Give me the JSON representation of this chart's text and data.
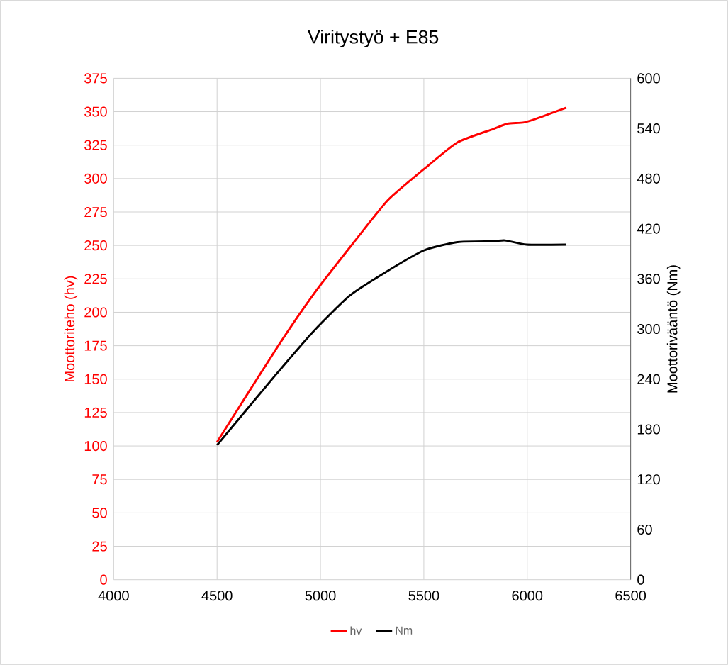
{
  "chart_data": {
    "type": "line",
    "title": "Viritystyö + E85",
    "ylabel": "Moottoriteho (hv)",
    "y2label": "Moottorivääntö (Nm)",
    "xlim": [
      4000,
      6500
    ],
    "xticks": [
      4000,
      4500,
      5000,
      5500,
      6000,
      6500
    ],
    "ylim": [
      0,
      375
    ],
    "yticks": [
      0,
      25,
      50,
      75,
      100,
      125,
      150,
      175,
      200,
      225,
      250,
      275,
      300,
      325,
      350,
      375
    ],
    "y2lim": [
      0,
      600
    ],
    "y2ticks": [
      0,
      60,
      120,
      180,
      240,
      300,
      360,
      420,
      480,
      540,
      600
    ],
    "grid": true,
    "legend": "bottom",
    "line_style": "solid",
    "series": [
      {
        "name": "hv",
        "color": "#ff0000",
        "x": [
          4500,
          4796,
          4969,
          5165,
          5327,
          5500,
          5662,
          5835,
          5904,
          5985,
          6066,
          6189
        ],
        "values": [
          103,
          175,
          214,
          253,
          284,
          307,
          327,
          337,
          341,
          342,
          346,
          353
        ]
      },
      {
        "name": "Nm",
        "color": "#000000",
        "axis": "y2",
        "x": [
          4500,
          4773,
          4969,
          5142,
          5315,
          5500,
          5662,
          5835,
          5893,
          5997,
          6189
        ],
        "values": [
          161,
          242,
          298,
          340,
          368,
          394,
          404,
          405,
          406,
          401,
          401
        ]
      }
    ]
  }
}
